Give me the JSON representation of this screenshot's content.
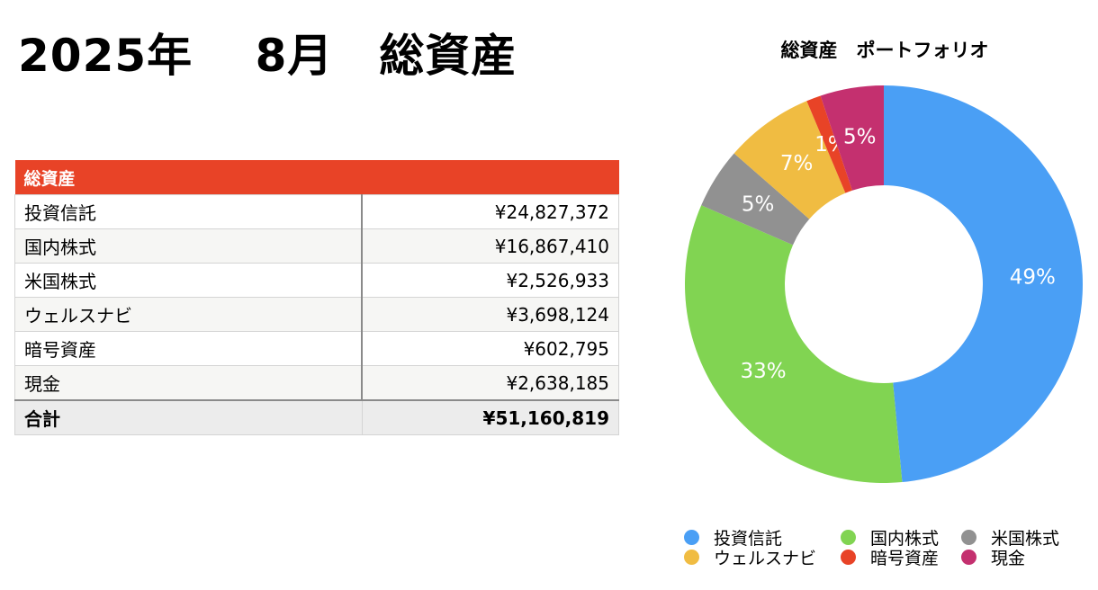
{
  "page": {
    "title": "2025年　 8月　総資産"
  },
  "table": {
    "header": "総資産",
    "rows": [
      {
        "name": "投資信託",
        "value": "¥24,827,372"
      },
      {
        "name": "国内株式",
        "value": "¥16,867,410"
      },
      {
        "name": "米国株式",
        "value": "¥2,526,933"
      },
      {
        "name": "ウェルスナビ",
        "value": "¥3,698,124"
      },
      {
        "name": "暗号資産",
        "value": "¥602,795"
      },
      {
        "name": "現金",
        "value": "¥2,638,185"
      }
    ],
    "total": {
      "name": "合計",
      "value": "¥51,160,819"
    }
  },
  "chart_data": {
    "type": "pie",
    "title": "総資産　ポートフォリオ",
    "donut": true,
    "categories": [
      "投資信託",
      "国内株式",
      "米国株式",
      "ウェルスナビ",
      "暗号資産",
      "現金"
    ],
    "values": [
      24827372,
      16867410,
      2526933,
      3698124,
      602795,
      2638185
    ],
    "labels": [
      "49%",
      "33%",
      "5%",
      "7%",
      "1%",
      "5%"
    ],
    "colors": [
      "#4a9ff5",
      "#81d452",
      "#919191",
      "#f0bc42",
      "#e84327",
      "#c4306f"
    ],
    "legend_position": "bottom"
  }
}
